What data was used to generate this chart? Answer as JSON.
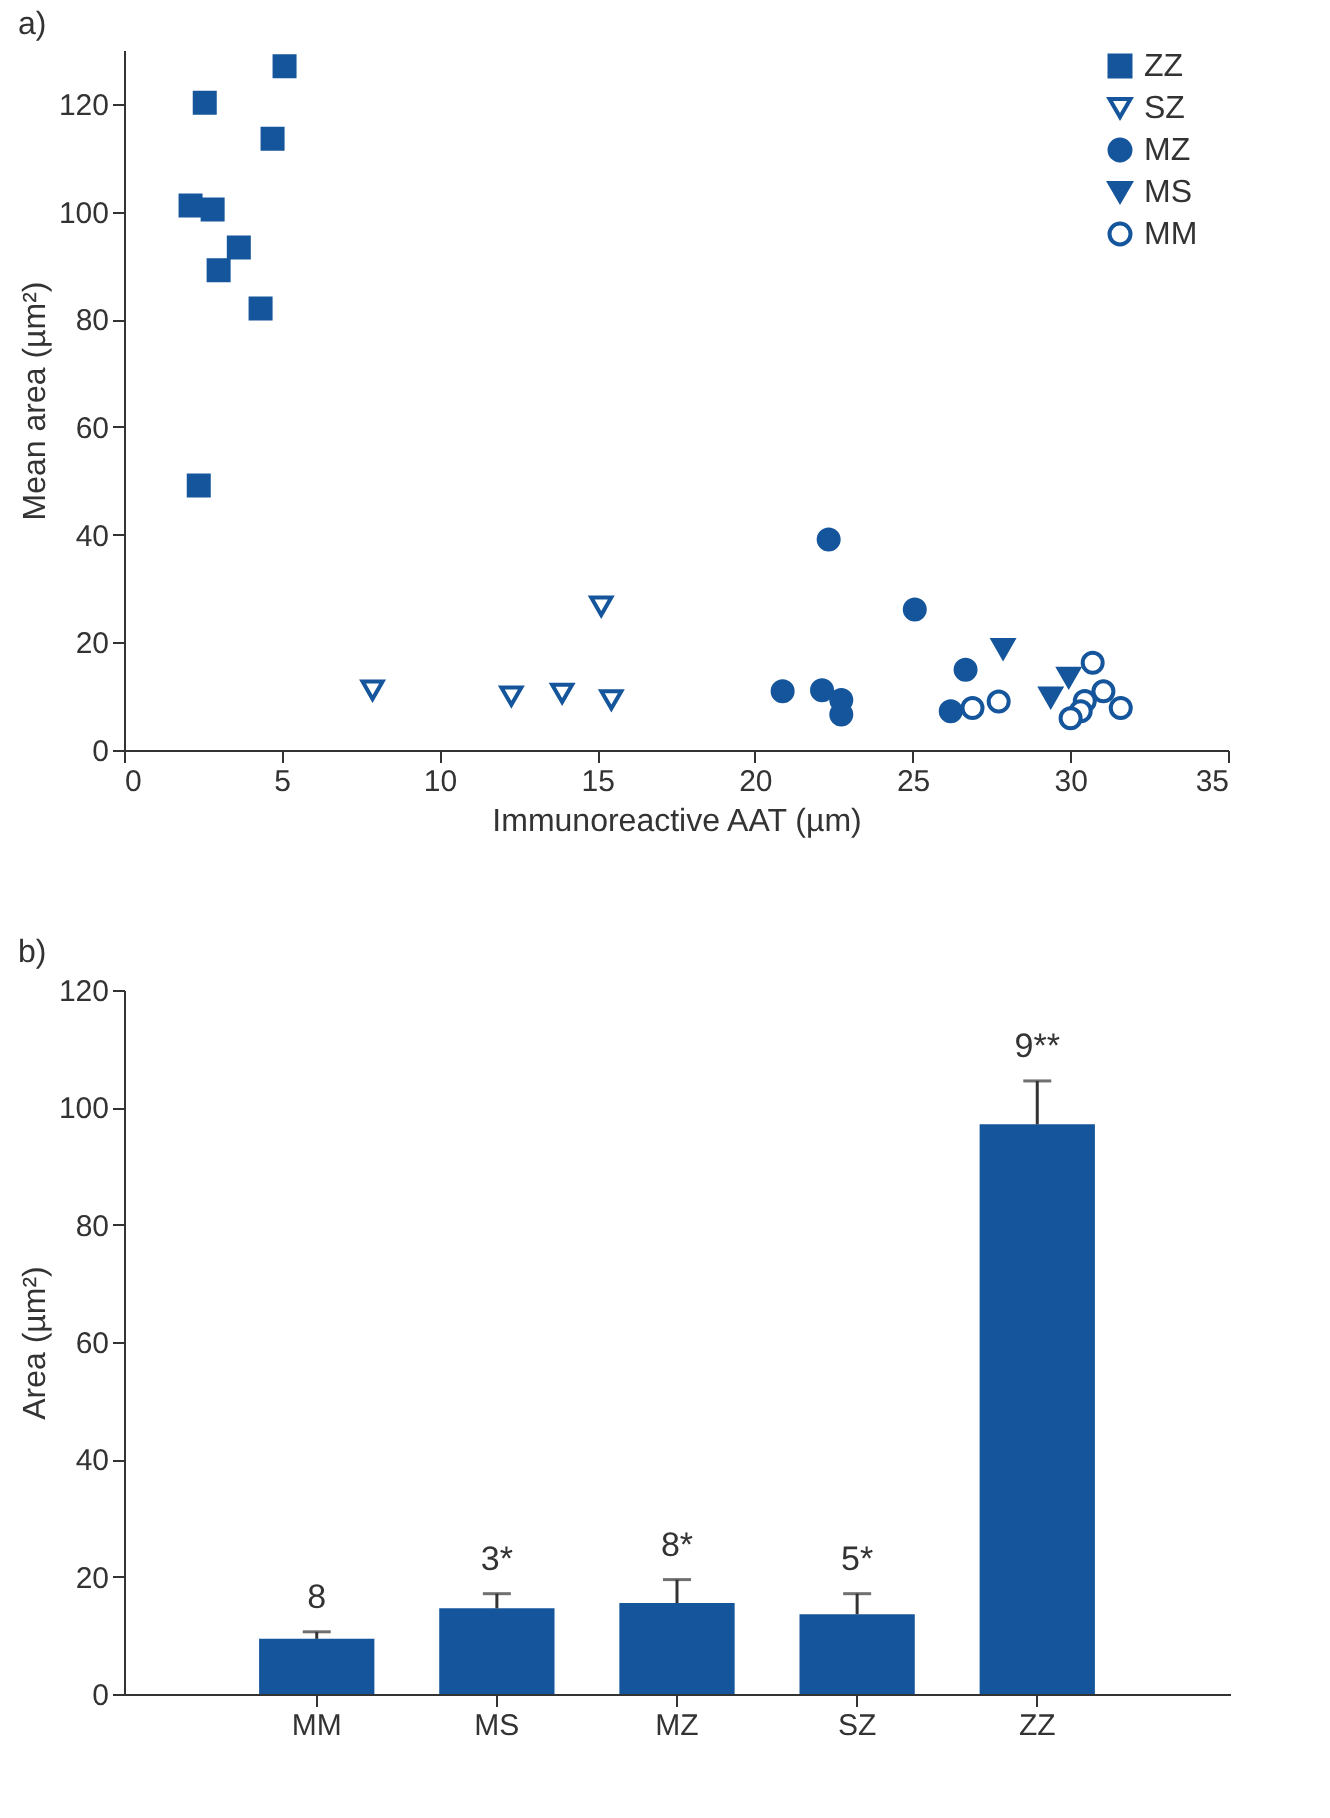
{
  "chart_data": [
    {
      "type": "scatter",
      "title": "a)",
      "xlabel": "Immunoreactive AAT (µm)",
      "ylabel": "Mean area (µm²)",
      "xlim": [
        0,
        35
      ],
      "ylim": [
        0,
        130
      ],
      "xticks": [
        0,
        5,
        10,
        15,
        20,
        25,
        30,
        35
      ],
      "yticks": [
        0,
        20,
        40,
        60,
        80,
        100,
        120
      ],
      "legend": "top right",
      "series": [
        {
          "name": "ZZ",
          "color": "#14559b",
          "marker": "square",
          "x": [
            5.09,
            2.56,
            4.71,
            2.11,
            2.81,
            3.64,
            3.0,
            4.33,
            2.37
          ],
          "values": [
            127.0,
            120.2,
            113.5,
            101.1,
            100.4,
            93.3,
            89.1,
            82.0,
            49.1
          ]
        },
        {
          "name": "SZ",
          "color": "#14559b",
          "marker": "triangle-open",
          "x": [
            7.88,
            12.28,
            13.89,
            15.13,
            15.45
          ],
          "values": [
            11.1,
            10.0,
            10.5,
            26.7,
            9.3
          ]
        },
        {
          "name": "MZ",
          "color": "#14559b",
          "marker": "circle",
          "x": [
            22.34,
            25.07,
            20.88,
            22.13,
            22.74,
            22.74,
            26.68,
            26.21
          ],
          "values": [
            39.1,
            26.1,
            10.9,
            11.1,
            9.3,
            6.6,
            14.9,
            7.2
          ]
        },
        {
          "name": "MS",
          "color": "#14559b",
          "marker": "triangle",
          "x": [
            27.87,
            29.95,
            29.38
          ],
          "values": [
            18.8,
            13.5,
            9.8
          ]
        },
        {
          "name": "MM",
          "color": "#14559b",
          "marker": "circle-open",
          "x": [
            26.9,
            27.73,
            30.71,
            31.05,
            30.46,
            30.33,
            30.01,
            31.6
          ],
          "values": [
            7.8,
            9.0,
            16.2,
            10.9,
            9.1,
            7.2,
            5.9,
            7.8
          ]
        }
      ]
    },
    {
      "type": "bar",
      "title": "b)",
      "ylabel": "Area (µm²)",
      "categories": [
        "MM",
        "MS",
        "MZ",
        "SZ",
        "ZZ"
      ],
      "values": [
        9.4,
        14.6,
        15.5,
        13.6,
        97.1
      ],
      "color": "#14559b",
      "errors": [
        [
          9.4,
          10.6
        ],
        [
          14.6,
          17.1
        ],
        [
          15.5,
          19.5
        ],
        [
          13.6,
          17.1
        ],
        [
          97.1,
          104.5
        ]
      ],
      "ylim": [
        0,
        120
      ],
      "yticks": [
        0,
        20,
        40,
        60,
        80,
        100,
        120
      ],
      "annotations": [
        {
          "text": "8",
          "x": "MM",
          "y": 10.6
        },
        {
          "text": "3*",
          "x": "MS",
          "y": 17.1
        },
        {
          "text": "8*",
          "x": "MZ",
          "y": 19.5
        },
        {
          "text": "5*",
          "x": "SZ",
          "y": 17.1
        },
        {
          "text": "9**",
          "x": "ZZ",
          "y": 104.5
        }
      ]
    }
  ]
}
